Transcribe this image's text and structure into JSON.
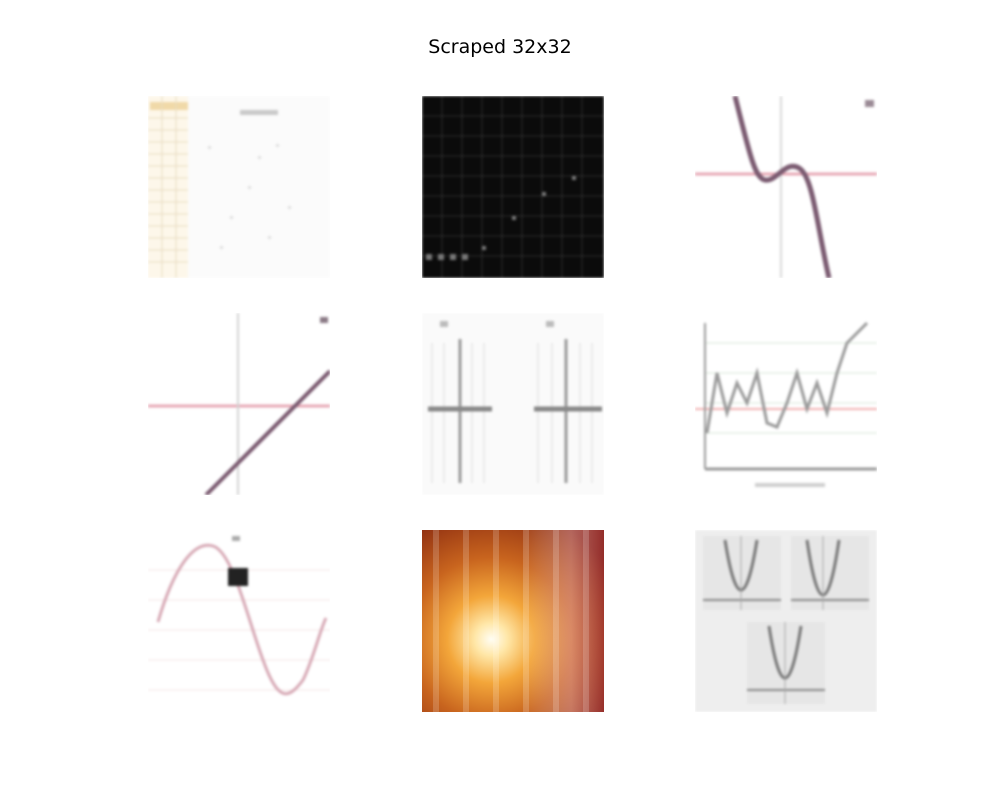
{
  "figure": {
    "title": "Scraped 32x32"
  },
  "tiles": [
    {
      "row": 1,
      "col": 1,
      "subject": "spreadsheet-with-chart"
    },
    {
      "row": 1,
      "col": 2,
      "subject": "dark-grid-plot"
    },
    {
      "row": 1,
      "col": 3,
      "subject": "cubic-function-graph"
    },
    {
      "row": 2,
      "col": 1,
      "subject": "linear-function-graph"
    },
    {
      "row": 2,
      "col": 2,
      "subject": "two-vertical-line-graphs"
    },
    {
      "row": 2,
      "col": 3,
      "subject": "zigzag-line-chart"
    },
    {
      "row": 3,
      "col": 1,
      "subject": "sine-wave-graph"
    },
    {
      "row": 3,
      "col": 2,
      "subject": "orange-light-burst"
    },
    {
      "row": 3,
      "col": 3,
      "subject": "three-parabola-graphs"
    }
  ],
  "colors": {
    "background": "#ffffff",
    "dark_tile": "#0b0b0b",
    "curve": "#7a5a70",
    "axis_pink": "#e7a9b6",
    "burst_orange": "#c8641e"
  }
}
